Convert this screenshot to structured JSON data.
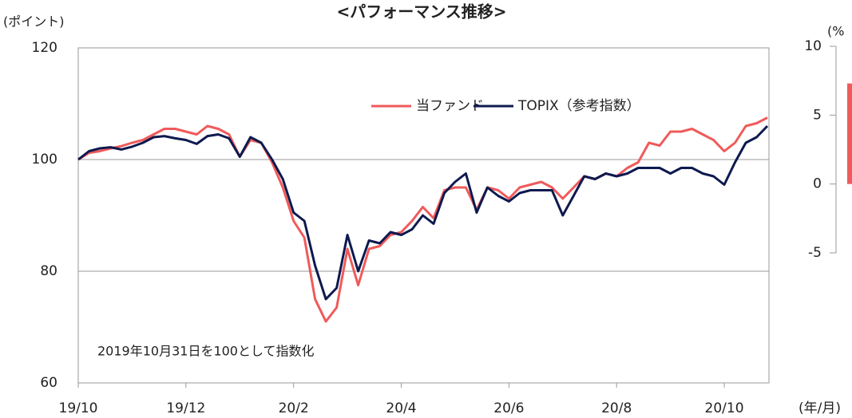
{
  "chart_data": [
    {
      "type": "line",
      "title": "<パフォーマンス推移>",
      "ylabel": "(ポイント)",
      "xlabel": "(年/月)",
      "annotation": "2019年10月31日を100として指数化",
      "x": [
        0,
        0.2,
        0.4,
        0.6,
        0.8,
        1.0,
        1.2,
        1.4,
        1.6,
        1.8,
        2.0,
        2.2,
        2.4,
        2.6,
        2.8,
        3.0,
        3.2,
        3.4,
        3.6,
        3.8,
        4.0,
        4.2,
        4.4,
        4.6,
        4.8,
        5.0,
        5.2,
        5.4,
        5.6,
        5.8,
        6.0,
        6.2,
        6.4,
        6.6,
        6.8,
        7.0,
        7.2,
        7.4,
        7.6,
        7.8,
        8.0,
        8.2,
        8.4,
        8.6,
        8.8,
        9.0,
        9.2,
        9.4,
        9.6,
        9.8,
        10.0,
        10.2,
        10.4,
        10.6,
        10.8,
        11.0,
        11.2,
        11.4,
        11.6,
        11.8,
        12.0,
        12.2,
        12.4,
        12.6,
        12.8
      ],
      "series": [
        {
          "name": "当ファンド",
          "color": "#f05a5a",
          "values": [
            100,
            101.2,
            101.5,
            102,
            102.4,
            103,
            103.5,
            104.5,
            105.5,
            105.5,
            105,
            104.5,
            106,
            105.5,
            104.5,
            100.5,
            103.5,
            103,
            99.5,
            95,
            89,
            86,
            75,
            71,
            73.5,
            84,
            77.5,
            84,
            84.5,
            86.5,
            87,
            89,
            91.5,
            89.5,
            94.5,
            95,
            95,
            91,
            95,
            94.5,
            93,
            95,
            95.5,
            96,
            95,
            93,
            95,
            97,
            96.5,
            97.5,
            97,
            98.5,
            99.5,
            103,
            102.5,
            105,
            105,
            105.5,
            104.5,
            103.5,
            101.5,
            103,
            106,
            106.5,
            107.5
          ]
        },
        {
          "name": "TOPIX（参考指数）",
          "color": "#0d1a4f",
          "values": [
            100,
            101.5,
            102,
            102.2,
            101.8,
            102.3,
            103,
            104,
            104.2,
            103.8,
            103.5,
            102.8,
            104.2,
            104.5,
            103.8,
            100.5,
            104,
            103,
            100,
            96.5,
            90.5,
            89,
            81,
            75,
            77,
            86.5,
            80,
            85.5,
            85,
            87,
            86.5,
            87.5,
            90,
            88.5,
            94,
            96,
            97.5,
            90.5,
            95,
            93.5,
            92.5,
            94,
            94.5,
            94.5,
            94.5,
            90,
            93.5,
            97,
            96.5,
            97.5,
            97,
            97.5,
            98.5,
            98.5,
            98.5,
            97.5,
            98.5,
            98.5,
            97.5,
            97,
            95.5,
            99.5,
            103,
            104,
            106
          ]
        }
      ],
      "xlim": [
        0,
        12.83
      ],
      "xticks": [
        {
          "value": 0,
          "label": "19/10"
        },
        {
          "value": 2,
          "label": "19/12"
        },
        {
          "value": 4,
          "label": "20/2"
        },
        {
          "value": 6,
          "label": "20/4"
        },
        {
          "value": 8,
          "label": "20/6"
        },
        {
          "value": 10,
          "label": "20/8"
        },
        {
          "value": 12,
          "label": "20/10"
        }
      ],
      "ylim": [
        60,
        120
      ],
      "yticks": [
        60,
        80,
        100,
        120
      ],
      "grid": true,
      "legend": "top-right"
    },
    {
      "type": "bar",
      "ylabel": "(%",
      "categories": [
        null
      ],
      "values": [
        7.3
      ],
      "color": "#f05a5a",
      "ylim": [
        -5,
        10
      ],
      "yticks": [
        -5,
        0,
        5,
        10
      ]
    }
  ]
}
